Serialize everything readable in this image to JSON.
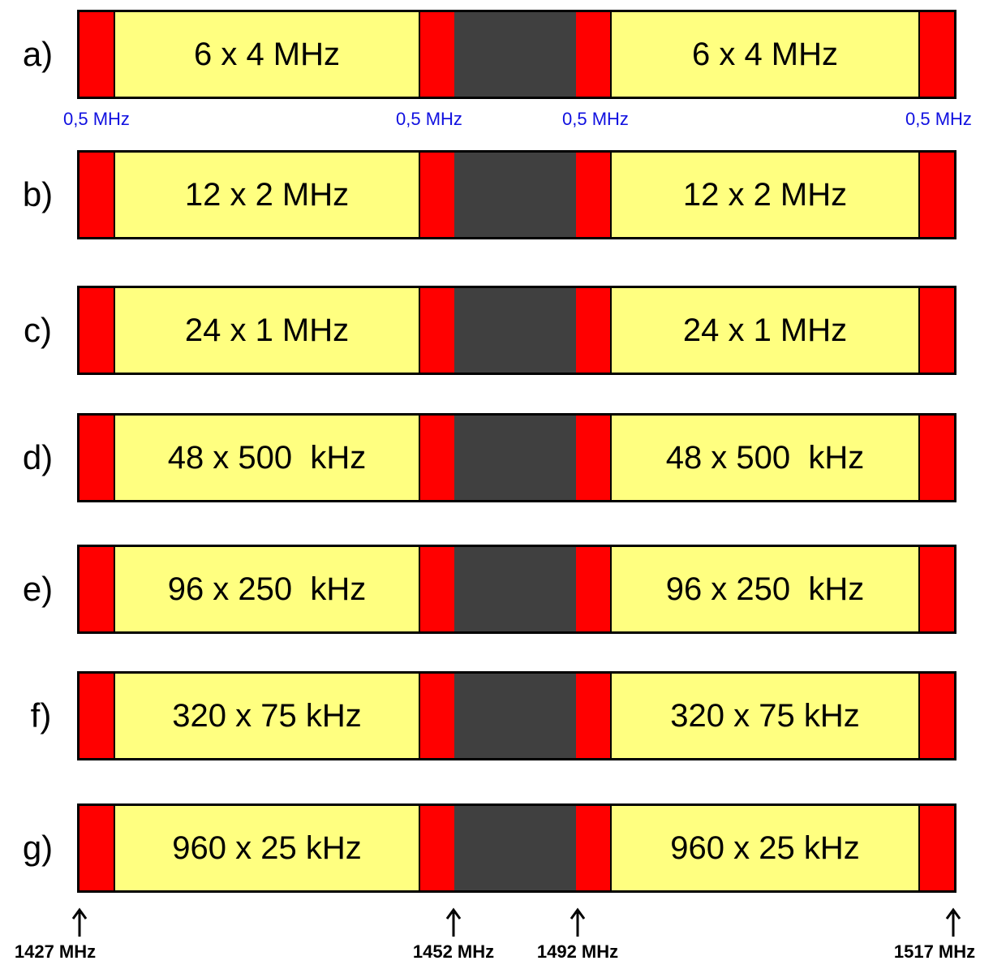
{
  "colors": {
    "guard": "#ff0000",
    "channel_block": "#ffff80",
    "center_gap": "#404040",
    "guard_label": "#1010e0"
  },
  "rows": [
    {
      "label": "a)",
      "left_text": "6 x 4 MHz",
      "right_text": "6 x 4 MHz"
    },
    {
      "label": "b)",
      "left_text": "12 x 2 MHz",
      "right_text": "12 x 2 MHz"
    },
    {
      "label": "c)",
      "left_text": "24 x 1 MHz",
      "right_text": "24 x 1 MHz"
    },
    {
      "label": "d)",
      "left_text": "48 x 500  kHz",
      "right_text": "48 x 500  kHz"
    },
    {
      "label": "e)",
      "left_text": "96 x 250  kHz",
      "right_text": "96 x 250  kHz"
    },
    {
      "label": "f)",
      "left_text": "320 x 75 kHz",
      "right_text": "320 x 75 kHz"
    },
    {
      "label": "g)",
      "left_text": "960 x 25 kHz",
      "right_text": "960 x 25 kHz"
    }
  ],
  "guard_labels": [
    "0,5 MHz",
    "0,5 MHz",
    "0,5 MHz",
    "0,5 MHz"
  ],
  "frequency_markers": [
    "1427 MHz",
    "1452 MHz",
    "1492 MHz",
    "1517 MHz"
  ],
  "icons": {
    "frequency_marker": "arrow-up-icon"
  }
}
